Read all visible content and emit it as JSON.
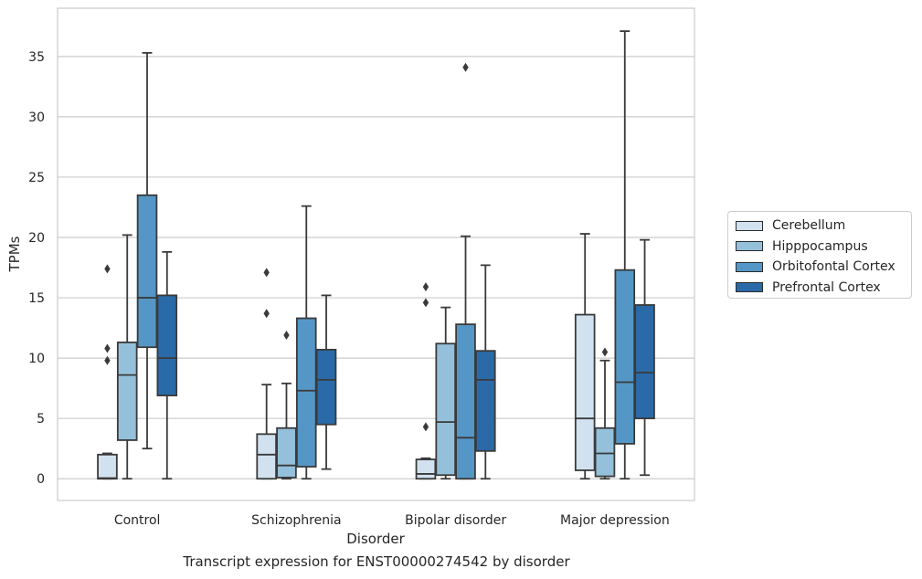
{
  "caption": "Transcript expression for ENST00000274542 by disorder",
  "chart_data": {
    "type": "box",
    "xlabel": "Disorder",
    "ylabel": "TPMs",
    "categories": [
      "Control",
      "Schizophrenia",
      "Bipolar disorder",
      "Major depression"
    ],
    "ylim": [
      -1.8,
      39
    ],
    "yticks": [
      0,
      5,
      10,
      15,
      20,
      25,
      30,
      35
    ],
    "grid": "horizontal",
    "legend_position": "right",
    "series": [
      {
        "name": "Cerebellum",
        "color": "#d1e1f0",
        "boxes": [
          {
            "whislo": 0,
            "q1": 0,
            "med": 0.05,
            "q3": 2.0,
            "whishi": 2.1,
            "fliers": [
              17.4,
              10.8,
              9.8
            ]
          },
          {
            "whislo": 0,
            "q1": 0,
            "med": 2.0,
            "q3": 3.7,
            "whishi": 7.8,
            "fliers": [
              17.1,
              13.7
            ]
          },
          {
            "whislo": 0,
            "q1": 0,
            "med": 0.4,
            "q3": 1.6,
            "whishi": 1.7,
            "fliers": [
              15.9,
              14.6,
              4.3
            ]
          },
          {
            "whislo": 0,
            "q1": 0.7,
            "med": 5.0,
            "q3": 13.6,
            "whishi": 20.3,
            "fliers": []
          }
        ]
      },
      {
        "name": "Hipppocampus",
        "color": "#94c0db",
        "boxes": [
          {
            "whislo": 0,
            "q1": 3.2,
            "med": 8.6,
            "q3": 11.3,
            "whishi": 20.2,
            "fliers": []
          },
          {
            "whislo": 0,
            "q1": 0.1,
            "med": 1.1,
            "q3": 4.2,
            "whishi": 7.9,
            "fliers": [
              11.9
            ]
          },
          {
            "whislo": 0,
            "q1": 0.3,
            "med": 4.7,
            "q3": 11.2,
            "whishi": 14.2,
            "fliers": []
          },
          {
            "whislo": 0,
            "q1": 0.2,
            "med": 2.1,
            "q3": 4.2,
            "whishi": 9.8,
            "fliers": [
              10.5
            ]
          }
        ]
      },
      {
        "name": "Orbitofontal Cortex",
        "color": "#5497c6",
        "boxes": [
          {
            "whislo": 2.5,
            "q1": 10.9,
            "med": 15.0,
            "q3": 23.5,
            "whishi": 35.3,
            "fliers": []
          },
          {
            "whislo": 0,
            "q1": 1.0,
            "med": 7.3,
            "q3": 13.3,
            "whishi": 22.6,
            "fliers": []
          },
          {
            "whislo": 0,
            "q1": 0,
            "med": 3.4,
            "q3": 12.8,
            "whishi": 20.1,
            "fliers": [
              34.1
            ]
          },
          {
            "whislo": 0,
            "q1": 2.9,
            "med": 8.0,
            "q3": 17.3,
            "whishi": 37.1,
            "fliers": []
          }
        ]
      },
      {
        "name": "Prefrontal Cortex",
        "color": "#2a6aa8",
        "boxes": [
          {
            "whislo": 0,
            "q1": 6.9,
            "med": 10.0,
            "q3": 15.2,
            "whishi": 18.8,
            "fliers": []
          },
          {
            "whislo": 0.8,
            "q1": 4.5,
            "med": 8.2,
            "q3": 10.7,
            "whishi": 15.2,
            "fliers": []
          },
          {
            "whislo": 0,
            "q1": 2.3,
            "med": 8.2,
            "q3": 10.6,
            "whishi": 17.7,
            "fliers": []
          },
          {
            "whislo": 0.3,
            "q1": 5.0,
            "med": 8.8,
            "q3": 14.4,
            "whishi": 19.8,
            "fliers": []
          }
        ]
      }
    ]
  }
}
